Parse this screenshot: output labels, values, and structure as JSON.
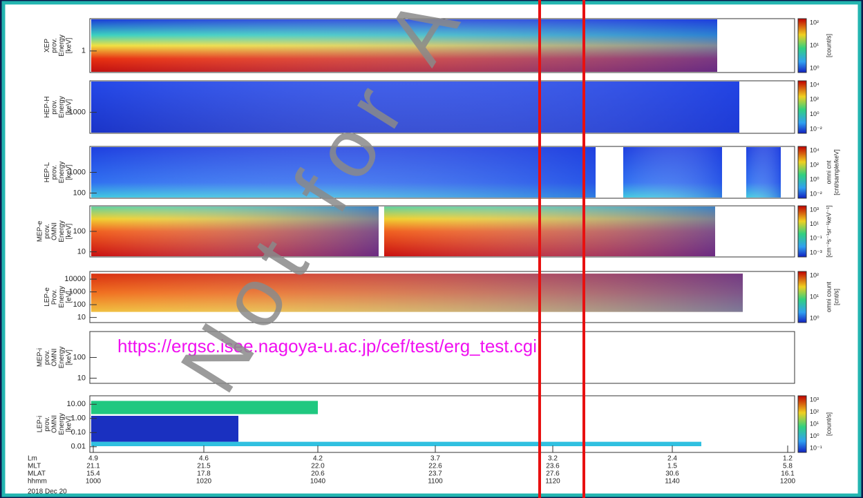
{
  "panels": [
    {
      "label": [
        "XEP",
        "prov.",
        "Energy",
        "[keV]"
      ],
      "yticks": [
        "1"
      ],
      "colorbar_ticks": [
        "10²",
        "10¹",
        "10⁰"
      ],
      "colorbar_unit": [
        "[count/s]"
      ]
    },
    {
      "label": [
        "HEP-H",
        "prov.",
        "Energy",
        "[keV]"
      ],
      "yticks": [
        "1000"
      ],
      "colorbar_ticks": [
        "10⁴",
        "10²",
        "10⁰",
        "10⁻²"
      ],
      "colorbar_unit": []
    },
    {
      "label": [
        "HEP-L",
        "prov.",
        "Energy",
        "[keV]"
      ],
      "yticks": [
        "1000",
        "100"
      ],
      "colorbar_ticks": [
        "10⁴",
        "10²",
        "10⁰",
        "10⁻²"
      ],
      "colorbar_unit": [
        "omni cnt",
        "[cnt/sample/keV]"
      ]
    },
    {
      "label": [
        "MEP-e",
        "prov.",
        "OMNI",
        "Energy",
        "[keV]"
      ],
      "yticks": [
        "100",
        "10"
      ],
      "colorbar_ticks": [
        "10³",
        "10¹",
        "10⁻¹",
        "10⁻³"
      ],
      "colorbar_unit": [
        "[cm⁻²s⁻¹sr⁻¹keV⁻¹]"
      ]
    },
    {
      "label": [
        "LEP-e",
        "Prov.",
        "Energy",
        "[eV]"
      ],
      "yticks": [
        "10000",
        "1000",
        "100",
        "10"
      ],
      "colorbar_ticks": [
        "10²",
        "10¹",
        "10⁰"
      ],
      "colorbar_unit": [
        "omni count",
        "[cnt/s]"
      ]
    },
    {
      "label": [
        "MEP-i",
        "prov.",
        "OMNI",
        "Energy",
        "[keV]"
      ],
      "yticks": [
        "100",
        "10"
      ],
      "colorbar_ticks": [],
      "colorbar_unit": []
    },
    {
      "label": [
        "LEP-i",
        "prov.",
        "OMNI",
        "Energy",
        "[keV]"
      ],
      "yticks": [
        "10.00",
        "1.00",
        "0.10",
        "0.01"
      ],
      "colorbar_ticks": [
        "10³",
        "10²",
        "10¹",
        "10⁰",
        "10⁻¹"
      ],
      "colorbar_unit": [
        "[count/s]"
      ]
    }
  ],
  "url": "https://ergsc.isee.nagoya-u.ac.jp/cef/test/erg_test.cgi",
  "watermark": "Not for A",
  "orbit": {
    "row_labels": [
      "Lm",
      "MLT",
      "MLAT",
      "hhmm"
    ],
    "date": "2018 Dec 20",
    "columns": [
      [
        "4.9",
        "21.1",
        "15.4",
        "1000"
      ],
      [
        "4.6",
        "21.5",
        "17.8",
        "1020"
      ],
      [
        "4.2",
        "22.0",
        "20.6",
        "1040"
      ],
      [
        "3.7",
        "22.6",
        "23.7",
        "1100"
      ],
      [
        "3.2",
        "23.6",
        "27.6",
        "1120"
      ],
      [
        "2.4",
        "1.5",
        "30.6",
        "1140"
      ],
      [
        "1.2",
        "5.8",
        "16.1",
        "1200"
      ]
    ]
  }
}
